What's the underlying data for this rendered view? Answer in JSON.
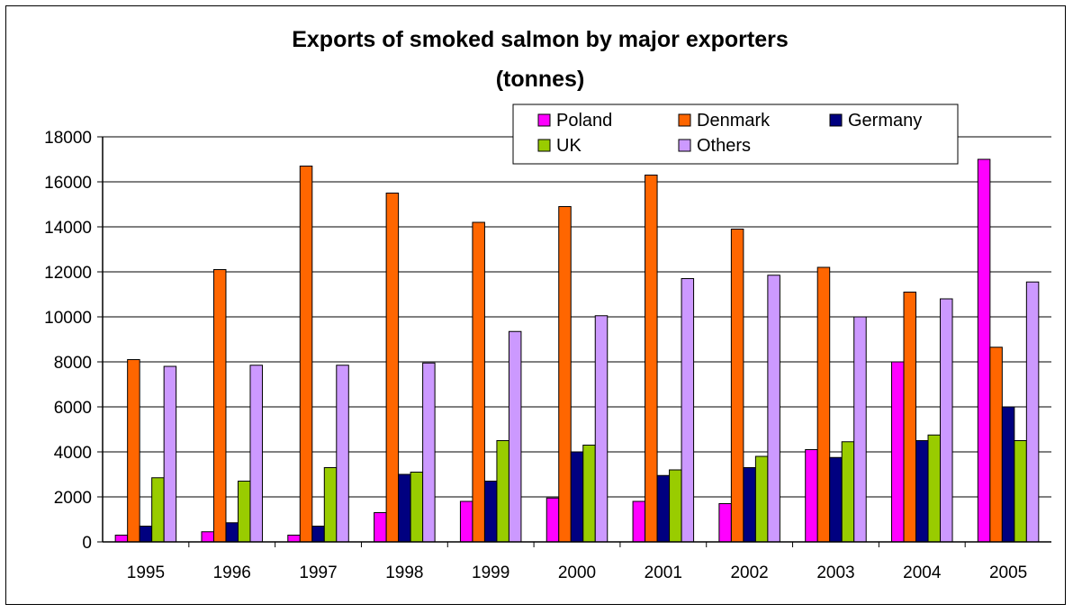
{
  "chart_data": {
    "type": "bar",
    "title_line1": "Exports of smoked salmon by major exporters",
    "title_line2": "(tonnes)",
    "xlabel": "",
    "ylabel": "",
    "categories": [
      "1995",
      "1996",
      "1997",
      "1998",
      "1999",
      "2000",
      "2001",
      "2002",
      "2003",
      "2004",
      "2005"
    ],
    "ylim": [
      0,
      18000
    ],
    "yticks": [
      "0",
      "2000",
      "4000",
      "6000",
      "8000",
      "10000",
      "12000",
      "14000",
      "16000",
      "18000"
    ],
    "grid": true,
    "legend_position": "top-right",
    "series": [
      {
        "name": "Poland",
        "color": "#ff00ff",
        "values": [
          300,
          450,
          300,
          1300,
          1800,
          1950,
          1800,
          1700,
          4100,
          8000,
          17000
        ]
      },
      {
        "name": "Denmark",
        "color": "#ff6600",
        "values": [
          8100,
          12100,
          16700,
          15500,
          14200,
          14900,
          16300,
          13900,
          12200,
          11100,
          8650
        ]
      },
      {
        "name": "Germany",
        "color": "#000080",
        "values": [
          700,
          850,
          700,
          3000,
          2700,
          4000,
          2950,
          3300,
          3750,
          4500,
          6000
        ]
      },
      {
        "name": "UK",
        "color": "#99cc00",
        "values": [
          2850,
          2700,
          3300,
          3100,
          4500,
          4300,
          3200,
          3800,
          4450,
          4750,
          4500
        ]
      },
      {
        "name": "Others",
        "color": "#cc99ff",
        "values": [
          7800,
          7850,
          7850,
          7950,
          9350,
          10050,
          11700,
          11850,
          10000,
          10800,
          11550
        ]
      }
    ]
  }
}
